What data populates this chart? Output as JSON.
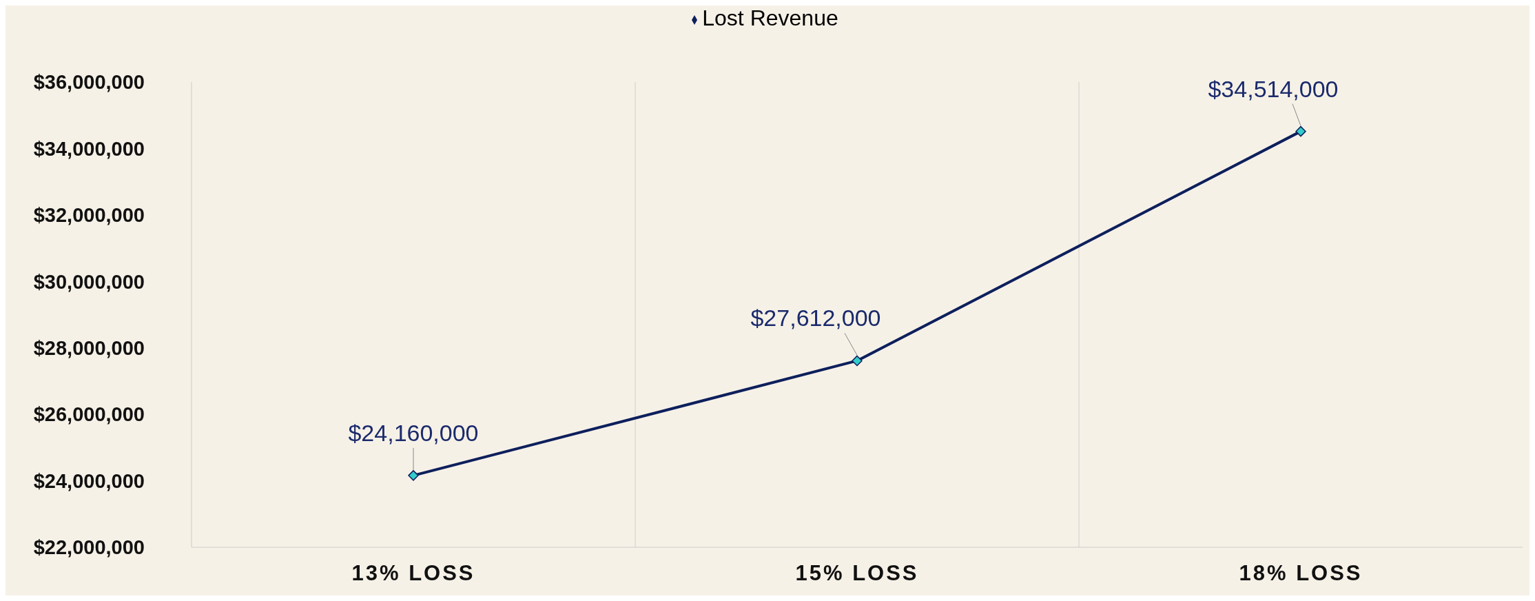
{
  "chart_data": {
    "type": "line",
    "categories": [
      "13% LOSS",
      "15% LOSS",
      "18% LOSS"
    ],
    "series": [
      {
        "name": "Lost Revenue",
        "color": "#0d1f5c",
        "values": [
          24160000,
          27612000,
          34514000
        ],
        "value_labels": [
          "$24,160,000",
          "$27,612,000",
          "$34,514,000"
        ]
      }
    ],
    "ylim": [
      22000000,
      36000000
    ],
    "yticks": [
      {
        "value": 22000000,
        "label": "$22,000,000"
      },
      {
        "value": 24000000,
        "label": "$24,000,000"
      },
      {
        "value": 26000000,
        "label": "$26,000,000"
      },
      {
        "value": 28000000,
        "label": "$28,000,000"
      },
      {
        "value": 30000000,
        "label": "$30,000,000"
      },
      {
        "value": 32000000,
        "label": "$32,000,000"
      },
      {
        "value": 34000000,
        "label": "$34,000,000"
      },
      {
        "value": 36000000,
        "label": "$36,000,000"
      }
    ],
    "grid": "x",
    "legend": "top",
    "marker": "diamond",
    "line_style": "solid"
  }
}
